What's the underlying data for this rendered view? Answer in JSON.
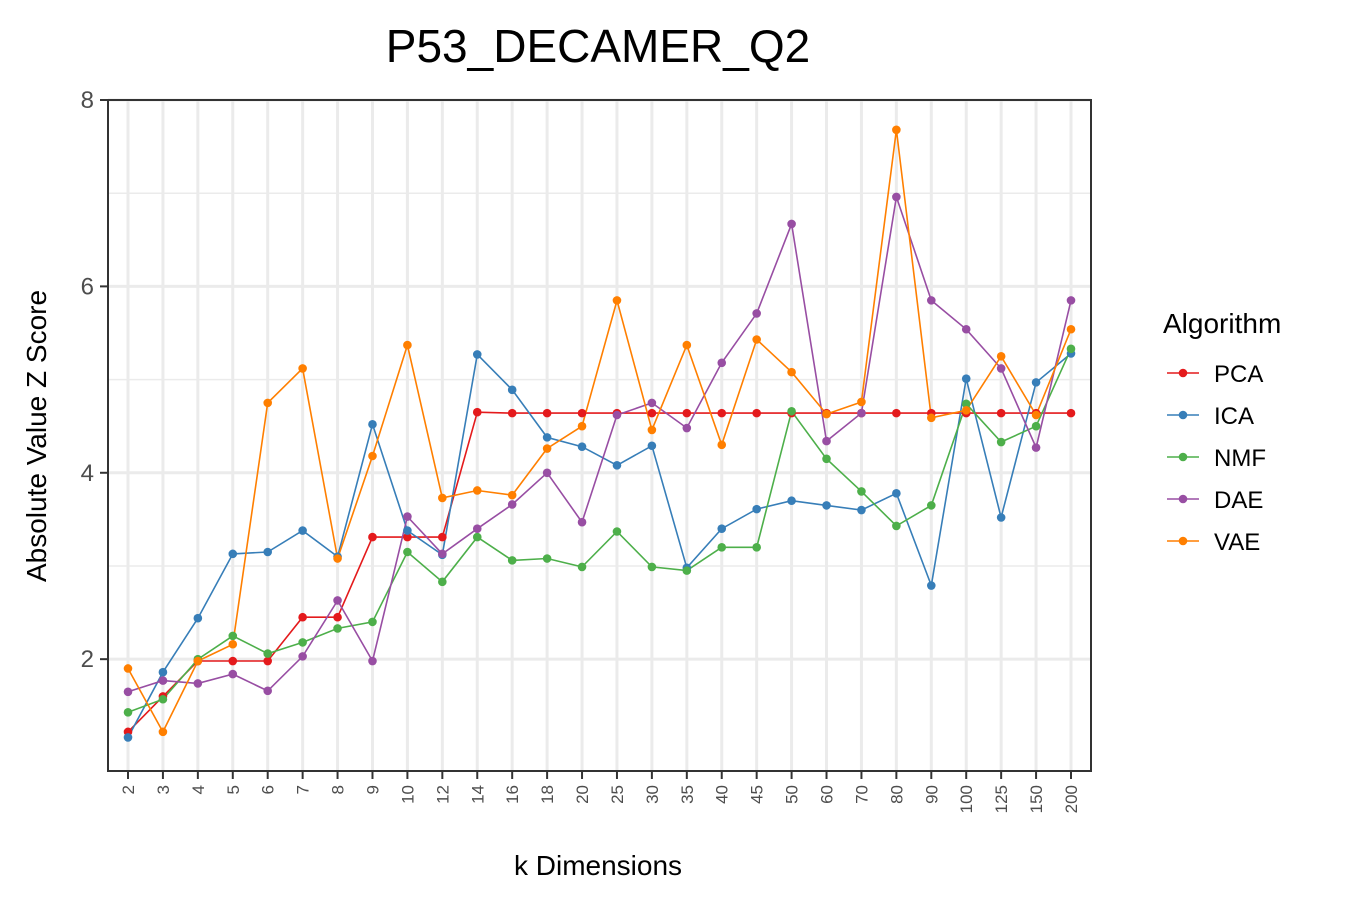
{
  "chart_data": {
    "type": "line",
    "title": "P53_DECAMER_Q2",
    "xlabel": "k Dimensions",
    "ylabel": "Absolute Value Z Score",
    "ylim": [
      0.8,
      8.0
    ],
    "yticks": [
      "2",
      "4",
      "6",
      "8"
    ],
    "categories": [
      "2",
      "3",
      "4",
      "5",
      "6",
      "7",
      "8",
      "9",
      "10",
      "12",
      "14",
      "16",
      "18",
      "20",
      "25",
      "30",
      "35",
      "40",
      "45",
      "50",
      "60",
      "70",
      "80",
      "90",
      "100",
      "125",
      "150",
      "200"
    ],
    "legend_title": "Algorithm",
    "legend_position": "right",
    "grid": true,
    "series": [
      {
        "name": "PCA",
        "color": "#e41a1c",
        "values": [
          1.22,
          1.6,
          1.98,
          1.98,
          1.98,
          2.45,
          2.45,
          3.31,
          3.31,
          3.31,
          4.65,
          4.64,
          4.64,
          4.64,
          4.64,
          4.64,
          4.64,
          4.64,
          4.64,
          4.64,
          4.64,
          4.64,
          4.64,
          4.64,
          4.64,
          4.64,
          4.64,
          4.64
        ]
      },
      {
        "name": "ICA",
        "color": "#377eb8",
        "values": [
          1.16,
          1.86,
          2.44,
          3.13,
          3.15,
          3.38,
          3.1,
          4.52,
          3.38,
          3.12,
          5.27,
          4.89,
          4.38,
          4.28,
          4.08,
          4.29,
          2.98,
          3.4,
          3.61,
          3.7,
          3.65,
          3.6,
          3.78,
          2.79,
          5.01,
          3.52,
          4.97,
          5.28
        ]
      },
      {
        "name": "NMF",
        "color": "#4daf4a",
        "values": [
          1.43,
          1.57,
          2.0,
          2.25,
          2.06,
          2.18,
          2.33,
          2.4,
          3.15,
          2.83,
          3.31,
          3.06,
          3.08,
          2.99,
          3.37,
          2.99,
          2.95,
          3.2,
          3.2,
          4.66,
          4.15,
          3.8,
          3.43,
          3.65,
          4.74,
          4.33,
          4.5,
          5.33
        ]
      },
      {
        "name": "DAE",
        "color": "#984ea3",
        "values": [
          1.65,
          1.77,
          1.74,
          1.84,
          1.66,
          2.03,
          2.63,
          1.98,
          3.53,
          3.13,
          3.4,
          3.66,
          4.0,
          3.47,
          4.62,
          4.75,
          4.48,
          5.18,
          5.71,
          6.67,
          4.34,
          4.64,
          6.96,
          5.85,
          5.54,
          5.12,
          4.27,
          5.85
        ]
      },
      {
        "name": "VAE",
        "color": "#ff7f00",
        "values": [
          1.9,
          1.22,
          1.98,
          2.16,
          4.75,
          5.12,
          3.08,
          4.18,
          5.37,
          3.73,
          3.81,
          3.76,
          4.26,
          4.5,
          5.85,
          4.46,
          5.37,
          4.3,
          5.43,
          5.08,
          4.63,
          4.76,
          7.68,
          4.59,
          4.67,
          5.25,
          4.62,
          5.54
        ]
      }
    ]
  }
}
